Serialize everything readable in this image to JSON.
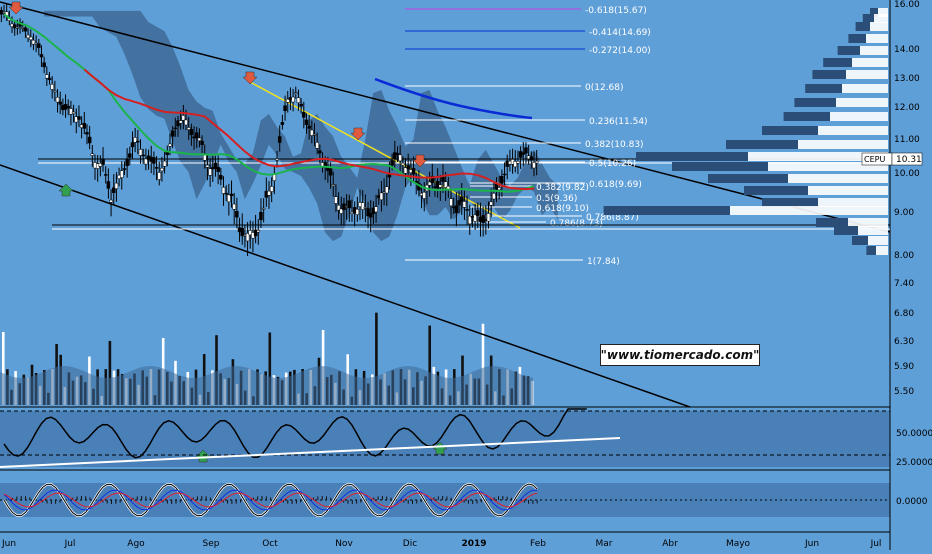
{
  "chart_data": {
    "type": "candlestick",
    "symbol": "CEPU",
    "last_price": "10.31",
    "x_ticks": [
      "Jun",
      "Jul",
      "Ago",
      "Sep",
      "Oct",
      "Nov",
      "Dic",
      "2019",
      "Feb",
      "Mar",
      "Abr",
      "Mayo",
      "Jun",
      "Jul"
    ],
    "y_ticks": [
      "16.00",
      "14.00",
      "13.00",
      "12.00",
      "11.00",
      "10.00",
      "9.00",
      "8.00",
      "7.40",
      "6.80",
      "6.30",
      "5.90",
      "5.50"
    ],
    "fib_levels": [
      {
        "label": "-0.618(15.67)",
        "color": "#c040e0"
      },
      {
        "label": "-0.414(14.69)",
        "color": "#0030d0"
      },
      {
        "label": "-0.272(14.00)",
        "color": "#0030d0"
      },
      {
        "label": "0(12.68)",
        "color": "#ffffff"
      },
      {
        "label": "0.236(11.54)",
        "color": "#ffffff"
      },
      {
        "label": "0.382(10.83)",
        "color": "#ffffff"
      },
      {
        "label": "0.5(10.26)",
        "color": "#ffffff"
      },
      {
        "label": "0.618(9.69)",
        "color": "#ffffff"
      },
      {
        "label": "0.382(9.82)",
        "color": "#ffffff"
      },
      {
        "label": "0.5(9.36)",
        "color": "#ffffff"
      },
      {
        "label": "0.618(9.10)",
        "color": "#ffffff"
      },
      {
        "label": "0.786(8.87)",
        "color": "#ffffff"
      },
      {
        "label": "0.786(8.73)",
        "color": "#ffffff"
      },
      {
        "label": "1(7.84)",
        "color": "#ffffff"
      }
    ],
    "close_series": [
      15.5,
      15.0,
      14.8,
      14.6,
      13.9,
      13.2,
      12.4,
      12.0,
      11.8,
      11.7,
      11.0,
      10.4,
      10.1,
      9.4,
      9.8,
      10.3,
      10.9,
      10.6,
      10.2,
      10.1,
      10.4,
      11.4,
      11.6,
      11.2,
      10.9,
      10.3,
      10.0,
      9.7,
      9.3,
      8.6,
      8.4,
      8.5,
      9.0,
      9.7,
      10.8,
      12.3,
      12.4,
      11.7,
      11.2,
      10.6,
      10.0,
      9.4,
      9.0,
      9.0,
      9.2,
      8.9,
      9.1,
      9.5,
      10.2,
      10.5,
      10.1,
      9.7,
      9.5,
      9.7,
      9.7,
      9.6,
      9.0,
      9.2,
      8.9,
      8.7,
      9.0,
      9.5,
      10.0,
      10.3,
      10.5,
      10.4,
      10.4
    ],
    "rsi_levels": {
      "upper": "70",
      "lower": "30",
      "mid_label": "50.0000",
      "low_label": "25.0000"
    },
    "macd_zero_label": "0.0000",
    "colors": {
      "background": "#5f9fd8",
      "price_up": "#ffffff",
      "price_down": "#000000",
      "ma_red": "#d42020",
      "ma_green": "#1ab44a",
      "ma_blue": "#0a2ad6",
      "trend_yellow": "#f0e020",
      "cloud": "#3e6a98"
    }
  },
  "watermark": "\"www.tiomercado.com\""
}
